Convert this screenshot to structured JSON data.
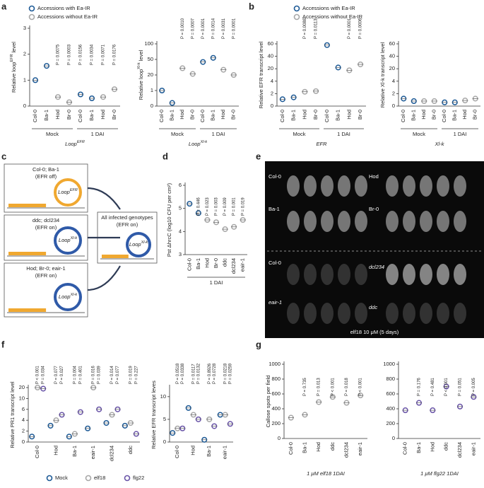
{
  "panel_labels": [
    "a",
    "b",
    "c",
    "d",
    "e",
    "f",
    "g"
  ],
  "chart_data": [
    {
      "type": "dot",
      "ylabel": "Relative loop",
      "ylabel_sup": "EFR",
      "ylabel_end": " level",
      "xlabel": "Loop",
      "xlabel_sup": "EFR",
      "categories": [
        "Col-0",
        "Ba-1",
        "Hod",
        "Br-0",
        "Col-0",
        "Ba-1",
        "Hod",
        "Br-0"
      ],
      "groups": [
        "Mock",
        "1 DAI"
      ],
      "series": [
        {
          "name": "Accessions with Ea-IR",
          "color": "#1d5a96",
          "values": [
            1.0,
            1.55,
            null,
            null,
            0.45,
            0.3,
            null,
            null
          ]
        },
        {
          "name": "Accessions without Ea-IR",
          "color": "#a8a8a8",
          "values": [
            null,
            null,
            0.35,
            0.15,
            null,
            null,
            0.35,
            0.65
          ]
        }
      ],
      "pvalues": [
        null,
        null,
        "P = 0.0075",
        "P = 0.0003",
        "P = 0.0156",
        "P = 0.0034",
        "P = 0.0071",
        "P = 0.0176"
      ],
      "ylim": [
        0,
        3
      ],
      "yticks": [
        0,
        1,
        2,
        3
      ],
      "scale": "linear",
      "legend": "top"
    },
    {
      "type": "dot",
      "ylabel": "Relative loop",
      "ylabel_sup": "Xl-k",
      "ylabel_end": " level",
      "xlabel": "Loop",
      "xlabel_sup": "Xl-k",
      "categories": [
        "Col-0",
        "Ba-1",
        "Hod",
        "Br-0",
        "Col-0",
        "Ba-1",
        "Hod",
        "Br-0"
      ],
      "groups": [
        "Mock",
        "1 DAI"
      ],
      "series": [
        {
          "color": "#1d5a96",
          "values": [
            1.0,
            0.2,
            null,
            null,
            45,
            55,
            null,
            null
          ]
        },
        {
          "color": "#a8a8a8",
          "values": [
            null,
            null,
            33,
            22,
            null,
            null,
            30,
            20
          ]
        }
      ],
      "pvalues": [
        null,
        null,
        "P = 0.0010",
        "P = 0.0007",
        "P = 0.0001",
        "P = 0.0014",
        "P = 0.0031",
        "P = 0.0001"
      ],
      "ylim": [
        0,
        100
      ],
      "yticks": [
        0,
        1,
        20,
        50,
        100
      ],
      "scale": "broken"
    },
    {
      "type": "dot",
      "ylabel": "Relative EFR transcript level",
      "xlabel": "EFR",
      "categories": [
        "Col-0",
        "Ba-1",
        "Hod",
        "Br-0",
        "Col-0",
        "Ba-1",
        "Hod",
        "Br-0"
      ],
      "groups": [
        "Mock",
        "1 DAI"
      ],
      "series": [
        {
          "name": "Accessions with Ea-IR",
          "color": "#1d5a96",
          "values": [
            1.1,
            1.4,
            null,
            null,
            58,
            22,
            null,
            null
          ]
        },
        {
          "name": "Accessions without Ea-IR",
          "color": "#a8a8a8",
          "values": [
            null,
            null,
            2.3,
            2.4,
            null,
            null,
            18,
            27
          ]
        }
      ],
      "pvalues": [
        null,
        null,
        "P = 0.0088",
        "P = 0.0113",
        null,
        null,
        "P = 0.0001",
        "P = 0.0006"
      ],
      "ylim": [
        0,
        60
      ],
      "yticks": [
        0,
        2,
        4,
        20,
        40,
        60
      ],
      "scale": "broken",
      "legend": "top"
    },
    {
      "type": "dot",
      "ylabel": "Relative Xl-k transcript level",
      "xlabel": "Xl-k",
      "categories": [
        "Col-0",
        "Ba-1",
        "Hod",
        "Br-0",
        "Col-0",
        "Ba-1",
        "Hod",
        "Br-0"
      ],
      "groups": [
        "Mock",
        "1 DAI"
      ],
      "series": [
        {
          "color": "#1d5a96",
          "values": [
            1.2,
            0.8,
            null,
            null,
            0.6,
            0.6,
            null,
            null
          ]
        },
        {
          "color": "#a8a8a8",
          "values": [
            null,
            null,
            0.8,
            0.8,
            null,
            null,
            0.9,
            1.2
          ]
        }
      ],
      "ylim": [
        0,
        60
      ],
      "yticks": [
        0,
        2,
        4,
        20,
        40,
        60
      ],
      "scale": "broken"
    },
    {
      "type": "dot",
      "ylabel": "Pst ΔhrcC (log10 CFU per cm²)",
      "categories": [
        "Col-0",
        "Ba-1",
        "Hod",
        "Br-0",
        "ddc",
        "dcl234",
        "eair-1"
      ],
      "groups": [
        "1 DAI"
      ],
      "series": [
        {
          "color": "#1d5a96",
          "values": [
            5.2,
            4.8,
            null,
            null,
            null,
            null,
            null
          ]
        },
        {
          "color": "#a8a8a8",
          "values": [
            null,
            null,
            4.5,
            4.4,
            4.1,
            4.2,
            4.5
          ]
        }
      ],
      "pvalues": [
        null,
        "P = 0.446",
        "P = 0.023",
        "P = 0.003",
        "P = 0.009",
        "P = 0.001",
        "P = 0.019"
      ],
      "ylim": [
        3,
        6
      ],
      "yticks": [
        3,
        4,
        5,
        6
      ],
      "scale": "linear"
    },
    {
      "type": "dot",
      "ylabel": "Relative PR1 transcript level",
      "categories": [
        "Col-0",
        "Hod",
        "Ba-1",
        "eair-1",
        "dcl234",
        "ddc"
      ],
      "series": [
        {
          "name": "Mock",
          "color": "#1d5a96",
          "values": [
            1,
            3,
            1,
            2.5,
            3.5,
            3
          ]
        },
        {
          "name": "elf18",
          "color": "#a8a8a8",
          "values": [
            20,
            4,
            1.5,
            20,
            5,
            3.5
          ],
          "pvalues": [
            "P < 0.001",
            "P = 0.077",
            "P = 0.004",
            "P = 0.016",
            "P = 0.014",
            "P = 0.019"
          ]
        },
        {
          "name": "flg22",
          "color": "#6a55a8",
          "values": [
            19,
            5,
            5.5,
            6,
            6,
            1.5
          ],
          "pvalues": [
            "P = 0.034",
            "P = 0.027",
            "P = 0.401",
            "P = 0.039",
            "P = 0.077",
            "P = 0.227"
          ]
        }
      ],
      "ylim": [
        0,
        20
      ],
      "yticks": [
        0,
        2,
        4,
        6,
        10,
        20
      ],
      "scale": "broken",
      "legend": "bottom"
    },
    {
      "type": "dot",
      "ylabel": "Relative EFR transcript leves",
      "categories": [
        "Col-0",
        "Hod",
        "Ba-1",
        "eair-1"
      ],
      "series": [
        {
          "color": "#1d5a96",
          "values": [
            2,
            7.5,
            0.5,
            6
          ]
        },
        {
          "color": "#a8a8a8",
          "values": [
            3,
            6,
            5,
            6
          ],
          "pvalues": [
            "P = 0.0518",
            "P = 0.0117",
            "P = 0.8926",
            "P = 0.0218"
          ]
        },
        {
          "color": "#6a55a8",
          "values": [
            3,
            5,
            3.5,
            4
          ],
          "pvalues": [
            "P = 0.0338",
            "P = 0.0132",
            "P = 0.0728",
            "P = 0.0259"
          ]
        }
      ],
      "ylim": [
        0,
        12
      ],
      "yticks": [
        0,
        5,
        10
      ],
      "scale": "linear"
    },
    {
      "type": "dot",
      "ylabel": "Callose spots per field",
      "xlabel": "1 μM elf18 1DAI",
      "categories": [
        "Col-0",
        "Ba-1",
        "Hod",
        "ddc",
        "dcl234",
        "eair-1"
      ],
      "series": [
        {
          "color": "#a8a8a8",
          "values": [
            280,
            320,
            490,
            560,
            480,
            580
          ]
        }
      ],
      "pvalues": [
        null,
        "P = 0.735",
        "P = 0.013",
        "P < 0.001",
        "P = 0.018",
        "P < 0.001"
      ],
      "ylim": [
        0,
        1000
      ],
      "yticks": [
        0,
        200,
        400,
        600,
        800,
        1000
      ],
      "scale": "linear"
    },
    {
      "type": "dot",
      "xlabel": "1 μM flg22 1DAI",
      "categories": [
        "Col-0",
        "Ba-1",
        "Hod",
        "ddc",
        "dcl234",
        "eair-1"
      ],
      "series": [
        {
          "color": "#6a55a8",
          "values": [
            380,
            480,
            380,
            700,
            430,
            560
          ]
        }
      ],
      "pvalues": [
        null,
        "P = 0.176",
        "P = 0.481",
        "P < 0.001",
        "P = 0.051",
        "P = 0.005"
      ],
      "ylim": [
        0,
        1000
      ],
      "yticks": [
        0,
        200,
        400,
        600,
        800,
        1000
      ],
      "scale": "linear"
    }
  ],
  "diagram": {
    "boxes": [
      {
        "title": "Col-0; Ba-1",
        "status": "(EFR off)",
        "loop": "Loop",
        "loop_sup": "EFR"
      },
      {
        "title": "ddc; dcl234",
        "status": "(EFR on)",
        "loop": "Loop",
        "loop_sup": "Xl-k"
      },
      {
        "title": "Hod; Br-0; eair-1",
        "status": "(EFR on)",
        "loop": "Loop",
        "loop_sup": "Xl-k"
      }
    ],
    "result": {
      "title": "All infected genotypes",
      "status": "(EFR on)",
      "loop": "Loop",
      "loop_sup": "Xl-k"
    }
  },
  "image": {
    "labels": [
      "Col-0",
      "Hod",
      "Ba-1",
      "Br-0",
      "Col-0",
      "dcl234",
      "eair-1",
      "ddc"
    ],
    "caption": "elf18 10 μM (5 days)"
  }
}
